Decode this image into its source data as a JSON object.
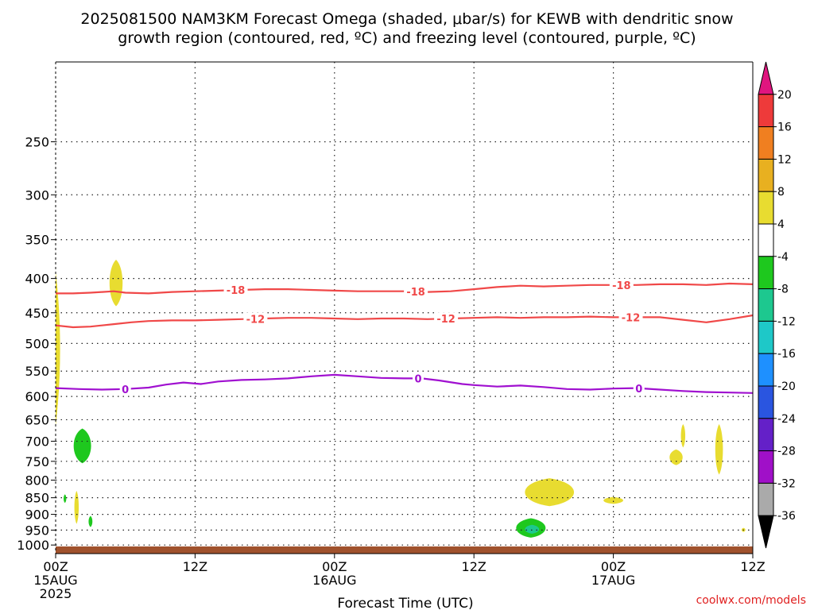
{
  "chart_data": {
    "type": "heatmap",
    "title_lines": [
      "2025081500 NAM3KM Forecast Omega (shaded, μbar/s) for KEWB with dendritic snow",
      "growth region (contoured, red, ºC) and freezing level (contoured, purple, ºC)"
    ],
    "xlabel": "Forecast Time (UTC)",
    "x_range_hours": [
      0,
      60
    ],
    "x_ticks": [
      {
        "h": 0,
        "lines": [
          "00Z",
          "15AUG",
          "2025"
        ]
      },
      {
        "h": 12,
        "lines": [
          "12Z"
        ]
      },
      {
        "h": 24,
        "lines": [
          "00Z",
          "16AUG"
        ]
      },
      {
        "h": 36,
        "lines": [
          "12Z"
        ]
      },
      {
        "h": 48,
        "lines": [
          "00Z",
          "17AUG"
        ]
      },
      {
        "h": 60,
        "lines": [
          "12Z"
        ]
      }
    ],
    "y_axis": {
      "units": "hPa",
      "inverted": true,
      "range": [
        1030,
        190
      ],
      "ticks": [
        "250",
        "300",
        "350",
        "400",
        "450",
        "500",
        "550",
        "600",
        "650",
        "700",
        "750",
        "800",
        "850",
        "900",
        "950",
        "1000"
      ]
    },
    "grid": true,
    "colorbar": {
      "labels": [
        "20",
        "16",
        "12",
        "8",
        "4",
        "-4",
        "-8",
        "-12",
        "-16",
        "-20",
        "-24",
        "-28",
        "-32",
        "-36"
      ],
      "colors": [
        "#e0157f",
        "#ee3a3a",
        "#f07f20",
        "#e8b020",
        "#e8dc30",
        "#ffffff",
        "#1ec81e",
        "#1dc88f",
        "#1ec8c8",
        "#1e90ff",
        "#2a55e0",
        "#6420c8",
        "#a010c8",
        "#aaaaaa",
        "#000000"
      ]
    },
    "contours": [
      {
        "name": "-18",
        "color": "#f04848",
        "points": [
          [
            0,
            421
          ],
          [
            1.5,
            421
          ],
          [
            3,
            420
          ],
          [
            4,
            419
          ],
          [
            5,
            418
          ],
          [
            6,
            420
          ],
          [
            8,
            421
          ],
          [
            10,
            419
          ],
          [
            12,
            418
          ],
          [
            14,
            417
          ],
          [
            16,
            416
          ],
          [
            18,
            415
          ],
          [
            20,
            415
          ],
          [
            22,
            416
          ],
          [
            24,
            417
          ],
          [
            26,
            418
          ],
          [
            28,
            418
          ],
          [
            30,
            418
          ],
          [
            32,
            419
          ],
          [
            34,
            418
          ],
          [
            36,
            415
          ],
          [
            38,
            412
          ],
          [
            40,
            410
          ],
          [
            42,
            411
          ],
          [
            44,
            410
          ],
          [
            46,
            409
          ],
          [
            48,
            409
          ],
          [
            50,
            409
          ],
          [
            52,
            408
          ],
          [
            54,
            408
          ],
          [
            56,
            409
          ],
          [
            58,
            407
          ],
          [
            60,
            408
          ]
        ],
        "labels": [
          {
            "h": 15.5,
            "text": "-18"
          },
          {
            "h": 31,
            "text": "-18"
          },
          {
            "h": 48.7,
            "text": "-18"
          }
        ]
      },
      {
        "name": "-12",
        "color": "#f04848",
        "points": [
          [
            0,
            470
          ],
          [
            1.5,
            473
          ],
          [
            3,
            472
          ],
          [
            5,
            468
          ],
          [
            6.5,
            465
          ],
          [
            8,
            463
          ],
          [
            10,
            462
          ],
          [
            12,
            462
          ],
          [
            14,
            461
          ],
          [
            16,
            460
          ],
          [
            18,
            459
          ],
          [
            20,
            458
          ],
          [
            22,
            458
          ],
          [
            24,
            459
          ],
          [
            26,
            460
          ],
          [
            28,
            459
          ],
          [
            30,
            459
          ],
          [
            32,
            460
          ],
          [
            34,
            459
          ],
          [
            36,
            458
          ],
          [
            38,
            457
          ],
          [
            40,
            458
          ],
          [
            42,
            457
          ],
          [
            44,
            457
          ],
          [
            46,
            456
          ],
          [
            48,
            457
          ],
          [
            50,
            457
          ],
          [
            52,
            457
          ],
          [
            54,
            461
          ],
          [
            56,
            465
          ],
          [
            58,
            460
          ],
          [
            60,
            454
          ]
        ],
        "labels": [
          {
            "h": 17.2,
            "text": "-12"
          },
          {
            "h": 33.6,
            "text": "-12"
          },
          {
            "h": 49.5,
            "text": "-12"
          }
        ]
      },
      {
        "name": "0",
        "color": "#a010d0",
        "points": [
          [
            0,
            583
          ],
          [
            2,
            585
          ],
          [
            4,
            586
          ],
          [
            6,
            585
          ],
          [
            8,
            582
          ],
          [
            9.5,
            576
          ],
          [
            11,
            572
          ],
          [
            12.5,
            575
          ],
          [
            14,
            570
          ],
          [
            16,
            567
          ],
          [
            18,
            566
          ],
          [
            20,
            564
          ],
          [
            22,
            560
          ],
          [
            24,
            557
          ],
          [
            26,
            560
          ],
          [
            28,
            563
          ],
          [
            30,
            564
          ],
          [
            31.5,
            564
          ],
          [
            33,
            568
          ],
          [
            35,
            575
          ],
          [
            36,
            577
          ],
          [
            38,
            580
          ],
          [
            40,
            578
          ],
          [
            42,
            581
          ],
          [
            44,
            585
          ],
          [
            46,
            586
          ],
          [
            48,
            584
          ],
          [
            50,
            583
          ],
          [
            52,
            586
          ],
          [
            54,
            589
          ],
          [
            56,
            591
          ],
          [
            58,
            592
          ],
          [
            60,
            593
          ]
        ],
        "labels": [
          {
            "h": 6,
            "text": "0"
          },
          {
            "h": 31.2,
            "text": "0"
          },
          {
            "h": 50.2,
            "text": "0"
          }
        ]
      }
    ],
    "shaded_regions": [
      {
        "category": "4",
        "color": "#e8dc30",
        "shape": "surface_sliver",
        "h": 0.1,
        "p_top": 390,
        "p_bottom": 665,
        "width_h": 0.7
      },
      {
        "category": "4",
        "color": "#e8dc30",
        "shape": "blob",
        "h": 5.2,
        "p_top": 375,
        "p_bottom": 440,
        "width_h": 1.2
      },
      {
        "category": "-4",
        "color": "#1ec81e",
        "shape": "blob",
        "h": 2.3,
        "p_top": 670,
        "p_bottom": 755,
        "width_h": 1.6
      },
      {
        "category": "-4",
        "color": "#1ec81e",
        "shape": "blob",
        "h": 0.8,
        "p_top": 840,
        "p_bottom": 865,
        "width_h": 0.25
      },
      {
        "category": "4",
        "color": "#e8dc30",
        "shape": "blob",
        "h": 1.8,
        "p_top": 830,
        "p_bottom": 930,
        "width_h": 0.4
      },
      {
        "category": "-4",
        "color": "#1ec81e",
        "shape": "blob",
        "h": 3.0,
        "p_top": 905,
        "p_bottom": 940,
        "width_h": 0.35
      },
      {
        "category": "4",
        "color": "#e8dc30",
        "shape": "blob",
        "h": 42.5,
        "p_top": 795,
        "p_bottom": 875,
        "width_h": 4.5
      },
      {
        "category": "4",
        "color": "#e8dc30",
        "shape": "blob",
        "h": 48.0,
        "p_top": 848,
        "p_bottom": 868,
        "width_h": 1.8
      },
      {
        "category": "-4",
        "color": "#1ec81e",
        "shape": "blob",
        "h": 40.9,
        "p_top": 912,
        "p_bottom": 975,
        "width_h": 2.7
      },
      {
        "category": "-8",
        "color": "#1dc88f",
        "shape": "blob",
        "h": 41.0,
        "p_top": 933,
        "p_bottom": 962,
        "width_h": 1.3
      },
      {
        "category": "4",
        "color": "#e8dc30",
        "shape": "blob",
        "h": 53.4,
        "p_top": 720,
        "p_bottom": 760,
        "width_h": 1.2
      },
      {
        "category": "4",
        "color": "#e8dc30",
        "shape": "blob",
        "h": 54.0,
        "p_top": 660,
        "p_bottom": 715,
        "width_h": 0.4
      },
      {
        "category": "4",
        "color": "#e8dc30",
        "shape": "blob",
        "h": 57.1,
        "p_top": 660,
        "p_bottom": 785,
        "width_h": 0.7
      },
      {
        "category": "4",
        "color": "#e8dc30",
        "shape": "blob",
        "h": 59.2,
        "p_top": 943,
        "p_bottom": 956,
        "width_h": 0.35
      }
    ],
    "terrain": {
      "color": "#a0522d",
      "p_top": 1005
    }
  },
  "credit": "coolwx.com/models"
}
